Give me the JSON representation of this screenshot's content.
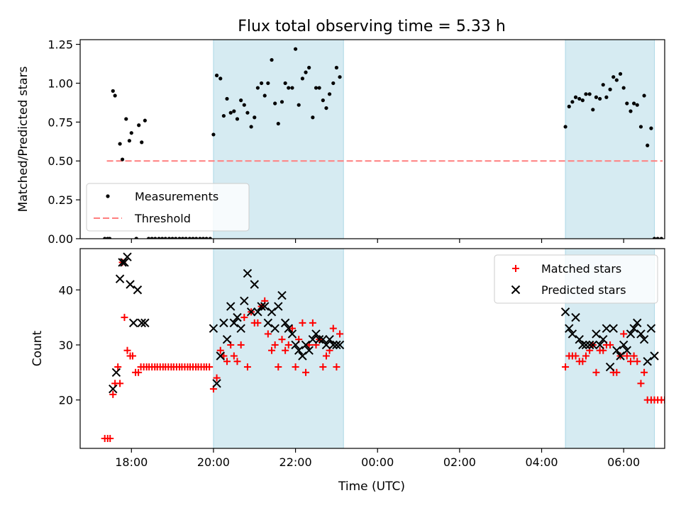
{
  "figure": {
    "title": "Flux total observing time = 5.33 h",
    "xlabel": "Time (UTC)"
  },
  "chart_data": [
    {
      "panel": "top",
      "type": "scatter",
      "ylabel": "Matched/Predicted stars",
      "xlim": [
        "17:12",
        "23:59+06:58"
      ],
      "xlim_hours": [
        16.75,
        31.0
      ],
      "ylim": [
        0,
        1.28
      ],
      "y_ticks": [
        "0.00",
        "0.25",
        "0.50",
        "0.75",
        "1.00",
        "1.25"
      ],
      "x_ticks": [
        "18:00",
        "20:00",
        "22:00",
        "00:00",
        "02:00",
        "04:00",
        "06:00"
      ],
      "shaded_spans_hours": [
        [
          20.0,
          23.17
        ],
        [
          28.58,
          30.75
        ]
      ],
      "threshold": {
        "name": "Threshold",
        "value": 0.5,
        "x_range_hours": [
          17.4,
          30.95
        ],
        "color": "#ff7f7f"
      },
      "legend": {
        "placement": "lower-left",
        "entries": [
          "Measurements",
          "Threshold"
        ]
      },
      "series": [
        {
          "name": "Measurements",
          "color": "#000000",
          "x_hours": [
            17.35,
            17.42,
            17.47,
            17.55,
            17.6,
            17.72,
            17.78,
            17.87,
            17.95,
            18.0,
            18.12,
            18.18,
            18.25,
            18.33,
            18.12,
            18.42,
            18.5,
            18.58,
            18.67,
            18.75,
            18.83,
            18.92,
            19.0,
            19.08,
            19.17,
            19.25,
            19.33,
            19.42,
            19.5,
            19.58,
            19.67,
            19.75,
            19.83,
            19.92,
            20.0,
            20.08,
            20.17,
            20.25,
            20.33,
            20.42,
            20.5,
            20.58,
            20.67,
            20.75,
            20.83,
            20.92,
            21.0,
            21.08,
            21.17,
            21.25,
            21.33,
            21.42,
            21.5,
            21.58,
            21.67,
            21.75,
            21.83,
            21.92,
            22.0,
            22.08,
            22.17,
            22.25,
            22.33,
            22.42,
            22.5,
            22.58,
            22.67,
            22.75,
            22.83,
            22.92,
            23.0,
            23.08,
            28.58,
            28.67,
            28.75,
            28.83,
            28.92,
            29.0,
            29.08,
            29.17,
            29.25,
            29.33,
            29.42,
            29.5,
            29.58,
            29.67,
            29.75,
            29.83,
            29.92,
            30.0,
            30.08,
            30.17,
            30.25,
            30.33,
            30.42,
            30.5,
            30.58,
            30.67,
            30.75,
            30.83,
            30.92
          ],
          "y": [
            0.0,
            0.0,
            0.0,
            0.95,
            0.92,
            0.61,
            0.51,
            0.77,
            0.63,
            0.68,
            0.0,
            0.73,
            0.62,
            0.76,
            0.0,
            0.0,
            0.0,
            0.0,
            0.0,
            0.0,
            0.0,
            0.0,
            0.0,
            0.0,
            0.0,
            0.0,
            0.0,
            0.0,
            0.0,
            0.0,
            0.0,
            0.0,
            0.0,
            0.0,
            0.67,
            1.05,
            1.03,
            0.79,
            0.9,
            0.81,
            0.82,
            0.77,
            0.89,
            0.86,
            0.81,
            0.72,
            0.78,
            0.97,
            1.0,
            0.92,
            1.0,
            1.15,
            0.87,
            0.74,
            0.88,
            1.0,
            0.97,
            0.97,
            1.22,
            0.86,
            1.03,
            1.07,
            1.1,
            0.78,
            0.97,
            0.97,
            0.89,
            0.84,
            0.93,
            1.0,
            1.1,
            1.04,
            0.72,
            0.85,
            0.88,
            0.91,
            0.9,
            0.89,
            0.93,
            0.93,
            0.83,
            0.91,
            0.9,
            0.99,
            0.91,
            0.96,
            1.04,
            1.02,
            1.06,
            0.97,
            0.87,
            0.82,
            0.87,
            0.86,
            0.72,
            0.92,
            0.6,
            0.71,
            0.0,
            0.0,
            0.0
          ]
        }
      ]
    },
    {
      "panel": "bottom",
      "type": "scatter",
      "ylabel": "Count",
      "xlim_hours": [
        16.75,
        31.0
      ],
      "ylim": [
        11.2,
        47.5
      ],
      "y_ticks": [
        "20",
        "30",
        "40"
      ],
      "x_ticks": [
        "18:00",
        "20:00",
        "22:00",
        "00:00",
        "02:00",
        "04:00",
        "06:00"
      ],
      "shaded_spans_hours": [
        [
          20.0,
          23.17
        ],
        [
          28.58,
          30.75
        ]
      ],
      "legend": {
        "placement": "top-right",
        "entries": [
          "Matched stars",
          "Predicted stars"
        ]
      },
      "series": [
        {
          "name": "Matched stars",
          "marker": "plus",
          "color": "#ff0000",
          "x_hours": [
            17.35,
            17.42,
            17.48,
            17.55,
            17.6,
            17.67,
            17.72,
            17.78,
            17.83,
            17.9,
            17.97,
            18.03,
            18.1,
            18.17,
            18.23,
            18.3,
            18.37,
            18.43,
            18.5,
            18.57,
            18.63,
            18.7,
            18.77,
            18.83,
            18.9,
            18.97,
            19.03,
            19.1,
            19.17,
            19.23,
            19.3,
            19.37,
            19.43,
            19.5,
            19.57,
            19.63,
            19.7,
            19.77,
            19.83,
            19.9,
            20.0,
            20.08,
            20.17,
            20.25,
            20.33,
            20.42,
            20.5,
            20.58,
            20.67,
            20.75,
            20.83,
            20.92,
            21.0,
            21.08,
            21.17,
            21.25,
            21.33,
            21.42,
            21.5,
            21.58,
            21.67,
            21.75,
            21.83,
            21.92,
            22.0,
            22.08,
            22.17,
            22.25,
            22.33,
            22.42,
            22.5,
            22.58,
            22.67,
            22.75,
            22.83,
            22.92,
            23.0,
            23.08,
            28.58,
            28.67,
            28.75,
            28.83,
            28.92,
            29.0,
            29.08,
            29.17,
            29.25,
            29.33,
            29.42,
            29.5,
            29.58,
            29.67,
            29.75,
            29.83,
            29.92,
            30.0,
            30.08,
            30.17,
            30.25,
            30.33,
            30.42,
            30.5,
            30.58,
            30.67,
            30.75,
            30.83,
            30.92,
            31.0
          ],
          "y": [
            13,
            13,
            13,
            21,
            23,
            26,
            23,
            45,
            35,
            29,
            28,
            28,
            25,
            25,
            26,
            26,
            26,
            26,
            26,
            26,
            26,
            26,
            26,
            26,
            26,
            26,
            26,
            26,
            26,
            26,
            26,
            26,
            26,
            26,
            26,
            26,
            26,
            26,
            26,
            26,
            22,
            24,
            29,
            28,
            27,
            30,
            28,
            27,
            30,
            35,
            26,
            36,
            34,
            34,
            37,
            38,
            32,
            29,
            30,
            26,
            31,
            29,
            30,
            33,
            26,
            31,
            34,
            25,
            30,
            34,
            30,
            31,
            26,
            28,
            29,
            33,
            26,
            32,
            26,
            28,
            28,
            28,
            27,
            27,
            28,
            29,
            30,
            25,
            29,
            29,
            30,
            30,
            25,
            25,
            28,
            32,
            28,
            27,
            28,
            27,
            23,
            25,
            20,
            20,
            20,
            20,
            20,
            20
          ],
          "note_dates": false
        },
        {
          "name": "Predicted stars",
          "marker": "x",
          "color": "#000000",
          "x_hours": [
            17.55,
            17.63,
            17.72,
            17.78,
            17.83,
            17.9,
            17.97,
            18.05,
            18.15,
            18.25,
            18.33,
            20.0,
            20.08,
            20.17,
            20.25,
            20.33,
            20.42,
            20.5,
            20.58,
            20.67,
            20.75,
            20.83,
            20.92,
            21.0,
            21.08,
            21.17,
            21.25,
            21.33,
            21.42,
            21.5,
            21.58,
            21.67,
            21.75,
            21.83,
            21.92,
            22.0,
            22.08,
            22.17,
            22.25,
            22.33,
            22.42,
            22.5,
            22.58,
            22.67,
            22.75,
            22.83,
            22.92,
            23.0,
            23.08,
            28.58,
            28.67,
            28.75,
            28.83,
            28.92,
            29.0,
            29.08,
            29.17,
            29.25,
            29.33,
            29.42,
            29.5,
            29.58,
            29.67,
            29.75,
            29.83,
            29.92,
            30.0,
            30.08,
            30.17,
            30.25,
            30.33,
            30.42,
            30.5,
            30.58,
            30.67,
            30.75
          ],
          "y": [
            22,
            25,
            42,
            45,
            45,
            46,
            41,
            34,
            40,
            34,
            34,
            33,
            23,
            28,
            34,
            31,
            37,
            34,
            35,
            33,
            38,
            43,
            36,
            41,
            36,
            37,
            37,
            34,
            36,
            33,
            37,
            39,
            34,
            33,
            32,
            30,
            29,
            28,
            30,
            29,
            31,
            32,
            31,
            31,
            30,
            31,
            30,
            30,
            30,
            36,
            33,
            32,
            35,
            31,
            30,
            30,
            30,
            30,
            32,
            30,
            31,
            33,
            26,
            33,
            29,
            28,
            30,
            29,
            32,
            33,
            34,
            32,
            31,
            27,
            33,
            28
          ]
        }
      ]
    }
  ]
}
